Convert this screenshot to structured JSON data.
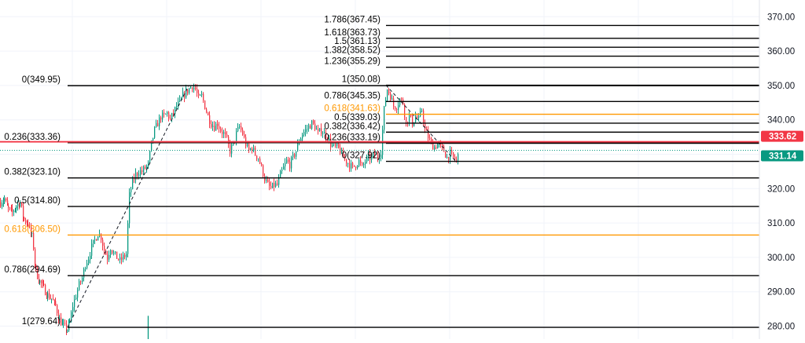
{
  "chart_data": {
    "type": "candlestick",
    "y_axis": {
      "position": "right",
      "ticks": [
        "370.00",
        "360.00",
        "350.00",
        "340.00",
        "330.00",
        "320.00",
        "310.00",
        "300.00",
        "290.00",
        "280.00"
      ],
      "tick_values": [
        370,
        360,
        350,
        340,
        330,
        320,
        310,
        300,
        290,
        280
      ],
      "range": [
        276,
        374
      ]
    },
    "price_badges": [
      {
        "value": 333.62,
        "label": "333.62",
        "color": "#f23645"
      },
      {
        "value": 331.14,
        "label": "331.14",
        "color": "#089981"
      }
    ],
    "colors": {
      "up": "#089981",
      "down": "#f23645",
      "fib_line": "#000000",
      "fib_golden": "#ff9800"
    },
    "fib_left": {
      "levels": [
        {
          "ratio": "0",
          "price": 349.95,
          "label": "0(349.95)"
        },
        {
          "ratio": "0.236",
          "price": 333.36,
          "label": "0.236(333.36)"
        },
        {
          "ratio": "0.382",
          "price": 323.1,
          "label": "0.382(323.10)"
        },
        {
          "ratio": "0.5",
          "price": 314.8,
          "label": "0.5(314.80)"
        },
        {
          "ratio": "0.618",
          "price": 306.5,
          "label": "0.618(306.50)",
          "golden": true
        },
        {
          "ratio": "0.786",
          "price": 294.69,
          "label": "0.786(294.69)"
        },
        {
          "ratio": "1",
          "price": 279.64,
          "label": "1(279.64)"
        }
      ]
    },
    "fib_right": {
      "levels": [
        {
          "ratio": "1.786",
          "price": 367.45,
          "label": "1.786(367.45)"
        },
        {
          "ratio": "1.618",
          "price": 363.73,
          "label": "1.618(363.73)"
        },
        {
          "ratio": "1.5",
          "price": 361.13,
          "label": "1.5(361.13)"
        },
        {
          "ratio": "1.382",
          "price": 358.52,
          "label": "1.382(358.52)"
        },
        {
          "ratio": "1.236",
          "price": 355.29,
          "label": "1.236(355.29)"
        },
        {
          "ratio": "1",
          "price": 350.08,
          "label": "1(350.08)"
        },
        {
          "ratio": "0.786",
          "price": 345.35,
          "label": "0.786(345.35)"
        },
        {
          "ratio": "0.618",
          "price": 341.63,
          "label": "0.618(341.63)",
          "golden": true
        },
        {
          "ratio": "0.5",
          "price": 339.03,
          "label": "0.5(339.03)"
        },
        {
          "ratio": "0.382",
          "price": 336.42,
          "label": "0.382(336.42)"
        },
        {
          "ratio": "0.236",
          "price": 333.19,
          "label": "0.236(333.19)"
        },
        {
          "ratio": "0",
          "price": 327.92,
          "label": "0(327.92)"
        }
      ]
    },
    "price_path": [
      [
        0,
        316
      ],
      [
        5,
        317
      ],
      [
        10,
        314
      ],
      [
        15,
        313
      ],
      [
        20,
        315
      ],
      [
        25,
        316
      ],
      [
        30,
        311
      ],
      [
        35,
        310
      ],
      [
        40,
        306
      ],
      [
        42,
        303
      ],
      [
        45,
        296
      ],
      [
        50,
        293
      ],
      [
        55,
        291
      ],
      [
        60,
        289
      ],
      [
        65,
        288
      ],
      [
        70,
        286
      ],
      [
        75,
        282
      ],
      [
        80,
        280
      ],
      [
        85,
        279
      ],
      [
        88,
        281
      ],
      [
        92,
        286
      ],
      [
        96,
        289
      ],
      [
        100,
        292
      ],
      [
        104,
        294
      ],
      [
        108,
        298
      ],
      [
        112,
        300
      ],
      [
        116,
        303
      ],
      [
        120,
        305
      ],
      [
        124,
        307
      ],
      [
        128,
        306
      ],
      [
        132,
        302
      ],
      [
        136,
        300
      ],
      [
        140,
        303
      ],
      [
        144,
        301
      ],
      [
        148,
        300
      ],
      [
        152,
        299
      ],
      [
        156,
        300
      ],
      [
        160,
        301
      ],
      [
        164,
        318
      ],
      [
        168,
        322
      ],
      [
        172,
        324
      ],
      [
        176,
        325
      ],
      [
        180,
        325
      ],
      [
        184,
        326
      ],
      [
        188,
        327
      ],
      [
        192,
        333
      ],
      [
        196,
        337
      ],
      [
        200,
        339
      ],
      [
        204,
        341
      ],
      [
        208,
        341
      ],
      [
        212,
        342
      ],
      [
        216,
        340
      ],
      [
        220,
        342
      ],
      [
        224,
        344
      ],
      [
        228,
        345
      ],
      [
        232,
        347
      ],
      [
        236,
        348
      ],
      [
        240,
        349
      ],
      [
        244,
        350
      ],
      [
        248,
        349
      ],
      [
        252,
        346
      ],
      [
        256,
        347
      ],
      [
        260,
        344
      ],
      [
        264,
        341
      ],
      [
        268,
        339
      ],
      [
        272,
        338
      ],
      [
        276,
        339
      ],
      [
        280,
        337
      ],
      [
        284,
        336
      ],
      [
        288,
        334
      ],
      [
        292,
        331
      ],
      [
        296,
        333
      ],
      [
        300,
        336
      ],
      [
        304,
        338
      ],
      [
        308,
        336
      ],
      [
        312,
        333
      ],
      [
        316,
        331
      ],
      [
        320,
        332
      ],
      [
        324,
        330
      ],
      [
        328,
        329
      ],
      [
        332,
        326
      ],
      [
        336,
        323
      ],
      [
        340,
        321
      ],
      [
        344,
        320
      ],
      [
        348,
        321
      ],
      [
        352,
        321
      ],
      [
        356,
        324
      ],
      [
        360,
        326
      ],
      [
        364,
        328
      ],
      [
        368,
        327
      ],
      [
        372,
        329
      ],
      [
        376,
        331
      ],
      [
        380,
        334
      ],
      [
        384,
        336
      ],
      [
        388,
        337
      ],
      [
        392,
        338
      ],
      [
        396,
        339
      ],
      [
        400,
        338
      ],
      [
        404,
        336
      ],
      [
        408,
        337
      ],
      [
        412,
        336
      ],
      [
        416,
        335
      ],
      [
        420,
        333
      ],
      [
        424,
        332
      ],
      [
        428,
        332
      ],
      [
        432,
        331
      ],
      [
        436,
        329
      ],
      [
        440,
        328
      ],
      [
        444,
        327
      ],
      [
        448,
        326
      ],
      [
        452,
        327
      ],
      [
        456,
        328
      ],
      [
        460,
        326
      ],
      [
        464,
        328
      ],
      [
        468,
        329
      ],
      [
        472,
        329
      ],
      [
        476,
        330
      ],
      [
        480,
        329
      ],
      [
        484,
        331
      ],
      [
        488,
        343
      ],
      [
        492,
        349
      ],
      [
        496,
        347
      ],
      [
        500,
        344
      ],
      [
        504,
        344
      ],
      [
        508,
        346
      ],
      [
        512,
        345
      ],
      [
        516,
        339
      ],
      [
        520,
        341
      ],
      [
        524,
        339
      ],
      [
        528,
        341
      ],
      [
        532,
        340
      ],
      [
        536,
        343
      ],
      [
        540,
        337
      ],
      [
        544,
        335
      ],
      [
        548,
        333
      ],
      [
        552,
        332
      ],
      [
        556,
        333
      ],
      [
        560,
        332
      ],
      [
        564,
        331
      ],
      [
        568,
        329
      ],
      [
        572,
        330
      ],
      [
        576,
        329
      ],
      [
        580,
        328
      ],
      [
        584,
        331
      ]
    ]
  }
}
